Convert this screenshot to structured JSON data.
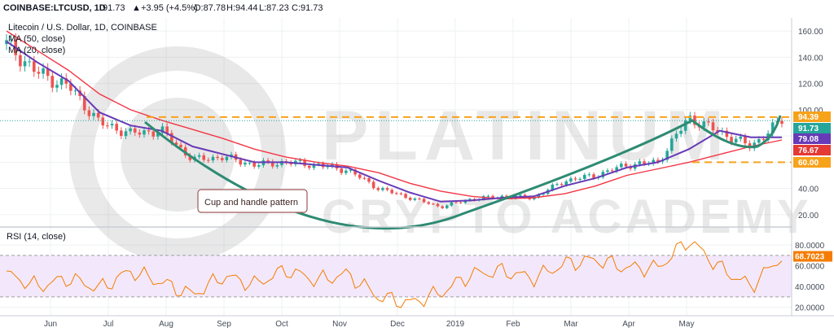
{
  "header": {
    "symbol": "COINBASE:LTCUSD, 1D",
    "last": "91.73",
    "change": "+3.95 (+4.5%)",
    "ohlc": [
      "O:87.78",
      "H:94.44",
      "L:87.23",
      "C:91.73"
    ]
  },
  "legend": {
    "title": "Litecoin / U.S. Dollar, 1D, COINBASE",
    "ma50": "MA (50, close)",
    "ma20": "MA (20, close)"
  },
  "watermark": {
    "line1": "PLATINUM",
    "line2": "CRYPTO ACADEMY"
  },
  "annotation": {
    "label": "Cup and handle pattern"
  },
  "rsi_label": "RSI (14, close)",
  "price_axis": {
    "ticks": [
      "160.00",
      "140.00",
      "120.00",
      "100.00",
      "40.00",
      "20.00"
    ]
  },
  "rsi_axis": {
    "ticks": [
      "80.0000",
      "60.0000",
      "40.0000",
      "20.0000"
    ]
  },
  "time_axis": [
    "Jun",
    "Jul",
    "Aug",
    "Sep",
    "Oct",
    "Nov",
    "Dec",
    "2019",
    "Feb",
    "Mar",
    "Apr",
    "May"
  ],
  "price_tags": [
    {
      "text": "94.39",
      "color": "#f7a21b"
    },
    {
      "text": "91.73",
      "color": "#26a69a"
    },
    {
      "text": "79.08",
      "color": "#673ab7"
    },
    {
      "text": "76.67",
      "color": "#e53935"
    },
    {
      "text": "60.00",
      "color": "#f7a21b"
    }
  ],
  "rsi_tag": {
    "text": "68.7023",
    "color": "#f57c00"
  },
  "colors": {
    "up": "#26a69a",
    "down": "#ef5350",
    "ma50": "#f23645",
    "ma20": "#673ab7",
    "cup": "#2e8b73",
    "level": "#f7a21b",
    "rsi": "#f57c00",
    "rsiband": "#f3e8fb"
  },
  "chart_data": {
    "type": "line",
    "title": "Litecoin / U.S. Dollar, 1D, COINBASE",
    "x": [
      "May-20",
      "Jun-01",
      "Jun-15",
      "Jul-01",
      "Jul-15",
      "Aug-01",
      "Aug-15",
      "Sep-01",
      "Sep-15",
      "Oct-01",
      "Oct-15",
      "Nov-01",
      "Nov-15",
      "Dec-01",
      "Dec-15",
      "Jan-01",
      "Jan-15",
      "Feb-01",
      "Feb-15",
      "Mar-01",
      "Mar-15",
      "Apr-01",
      "Apr-08",
      "Apr-15",
      "May-01",
      "May-10"
    ],
    "series": [
      {
        "name": "LTCUSD",
        "values": [
          150,
          128,
          118,
          90,
          82,
          84,
          62,
          64,
          58,
          60,
          58,
          54,
          40,
          33,
          26,
          32,
          34,
          33,
          46,
          50,
          58,
          60,
          94,
          83,
          72,
          92
        ]
      },
      {
        "name": "MA (50, close)",
        "values": [
          160,
          145,
          130,
          112,
          100,
          92,
          85,
          78,
          70,
          64,
          60,
          57,
          52,
          44,
          38,
          34,
          32,
          33,
          36,
          42,
          50,
          55,
          60,
          66,
          72,
          77
        ]
      },
      {
        "name": "MA (20, close)",
        "values": [
          152,
          136,
          122,
          98,
          88,
          84,
          72,
          66,
          60,
          60,
          58,
          56,
          46,
          37,
          30,
          31,
          33,
          34,
          42,
          48,
          56,
          60,
          70,
          84,
          79,
          79
        ]
      }
    ],
    "levels": [
      94.39,
      60.0
    ],
    "ylim": [
      15,
      165
    ],
    "rsi": {
      "name": "RSI (14, close)",
      "values": [
        52,
        40,
        48,
        38,
        55,
        44,
        32,
        50,
        42,
        56,
        46,
        52,
        30,
        24,
        34,
        52,
        55,
        48,
        62,
        66,
        58,
        58,
        85,
        58,
        40,
        69
      ],
      "ylim": [
        15,
        95
      ],
      "band": [
        30,
        70
      ]
    }
  }
}
